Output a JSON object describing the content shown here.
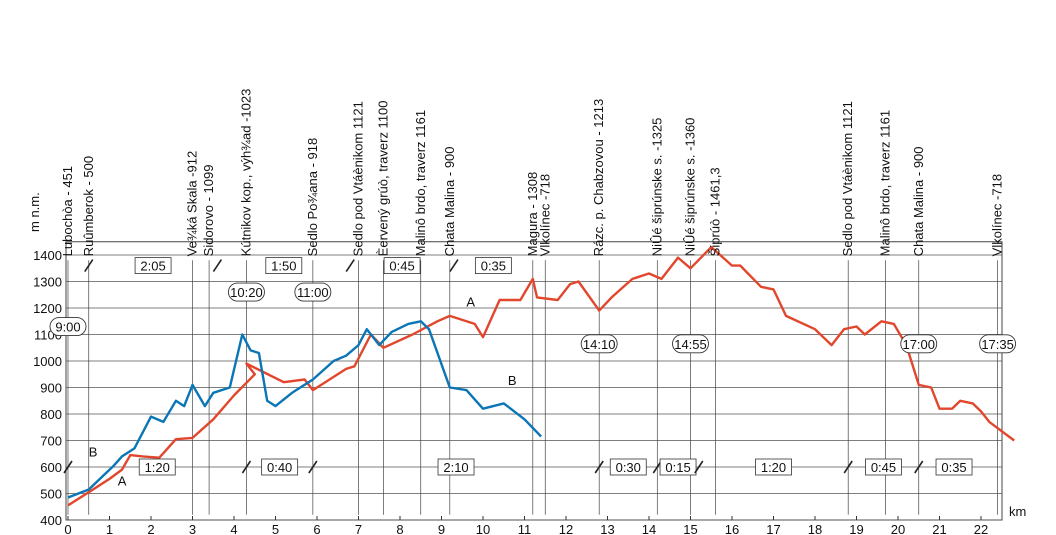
{
  "chart_data": {
    "type": "line",
    "ylabel": "m n.m.",
    "xlabel": "km",
    "xlim": [
      0,
      22.5
    ],
    "ylim": [
      400,
      1450
    ],
    "x_ticks": [
      "0",
      "1",
      "2",
      "3",
      "4",
      "5",
      "6",
      "7",
      "8",
      "9",
      "10",
      "11",
      "12",
      "13",
      "14",
      "15",
      "16",
      "17",
      "18",
      "19",
      "20",
      "21",
      "22"
    ],
    "y_ticks": [
      "400",
      "500",
      "600",
      "700",
      "800",
      "900",
      "1000",
      "1100",
      "1200",
      "1300",
      "1400"
    ],
    "grid": "horizontal",
    "colors": {
      "A": "#e2472e",
      "B": "#0b76b5"
    },
    "series": [
      {
        "name": "A",
        "points": [
          [
            0,
            455
          ],
          [
            0.5,
            505
          ],
          [
            1,
            555
          ],
          [
            1.3,
            590
          ],
          [
            1.5,
            645
          ],
          [
            1.8,
            640
          ],
          [
            2.2,
            635
          ],
          [
            2.6,
            705
          ],
          [
            3,
            710
          ],
          [
            3.5,
            780
          ],
          [
            4,
            870
          ],
          [
            4.5,
            950
          ],
          [
            4.3,
            990
          ],
          [
            5.2,
            920
          ],
          [
            5.7,
            930
          ],
          [
            5.9,
            890
          ],
          [
            6.2,
            920
          ],
          [
            6.7,
            970
          ],
          [
            6.9,
            980
          ],
          [
            7.3,
            1100
          ],
          [
            7.6,
            1050
          ],
          [
            8.3,
            1100
          ],
          [
            8.9,
            1150
          ],
          [
            9.2,
            1170
          ],
          [
            9.8,
            1140
          ],
          [
            10.0,
            1090
          ],
          [
            10.4,
            1230
          ],
          [
            10.9,
            1230
          ],
          [
            11.2,
            1310
          ],
          [
            11.3,
            1240
          ],
          [
            11.8,
            1230
          ],
          [
            12.1,
            1290
          ],
          [
            12.3,
            1300
          ],
          [
            12.8,
            1190
          ],
          [
            13.1,
            1240
          ],
          [
            13.6,
            1310
          ],
          [
            14.0,
            1330
          ],
          [
            14.3,
            1310
          ],
          [
            14.7,
            1390
          ],
          [
            15.0,
            1350
          ],
          [
            15.5,
            1430
          ],
          [
            16.0,
            1360
          ],
          [
            16.2,
            1360
          ],
          [
            16.7,
            1280
          ],
          [
            17.0,
            1270
          ],
          [
            17.3,
            1170
          ],
          [
            18.0,
            1120
          ],
          [
            18.4,
            1060
          ],
          [
            18.7,
            1120
          ],
          [
            19.0,
            1130
          ],
          [
            19.2,
            1100
          ],
          [
            19.6,
            1150
          ],
          [
            19.9,
            1140
          ],
          [
            20.2,
            1060
          ],
          [
            20.5,
            910
          ],
          [
            20.8,
            900
          ],
          [
            21.0,
            820
          ],
          [
            21.3,
            820
          ],
          [
            21.5,
            850
          ],
          [
            21.8,
            840
          ],
          [
            22.0,
            810
          ],
          [
            22.2,
            770
          ],
          [
            22.8,
            700
          ]
        ]
      },
      {
        "name": "B",
        "points": [
          [
            0,
            485
          ],
          [
            0.5,
            515
          ],
          [
            0.8,
            560
          ],
          [
            1.1,
            605
          ],
          [
            1.3,
            640
          ],
          [
            1.6,
            670
          ],
          [
            2.0,
            790
          ],
          [
            2.3,
            770
          ],
          [
            2.6,
            850
          ],
          [
            2.8,
            830
          ],
          [
            3.0,
            910
          ],
          [
            3.3,
            830
          ],
          [
            3.5,
            880
          ],
          [
            3.9,
            900
          ],
          [
            4.2,
            1100
          ],
          [
            4.4,
            1040
          ],
          [
            4.6,
            1030
          ],
          [
            4.8,
            850
          ],
          [
            5.0,
            830
          ],
          [
            5.4,
            880
          ],
          [
            5.9,
            930
          ],
          [
            6.4,
            1000
          ],
          [
            6.7,
            1020
          ],
          [
            7.0,
            1060
          ],
          [
            7.2,
            1120
          ],
          [
            7.5,
            1060
          ],
          [
            7.8,
            1110
          ],
          [
            8.2,
            1140
          ],
          [
            8.5,
            1150
          ],
          [
            8.7,
            1120
          ],
          [
            9.2,
            900
          ],
          [
            9.6,
            890
          ],
          [
            10.0,
            820
          ],
          [
            10.5,
            840
          ],
          [
            11.0,
            780
          ],
          [
            11.4,
            715
          ]
        ]
      }
    ],
    "points_of_interest": [
      {
        "label": "Lubochòa - 451",
        "km": 0
      },
      {
        "label": "Ruûmberok - 500",
        "km": 0.5
      },
      {
        "label": "Ve¾ká Skala -912",
        "km": 3
      },
      {
        "label": "Sidorovo - 1099",
        "km": 3.4
      },
      {
        "label": "Kútnikov kop., výh¾ad -1023",
        "km": 4.3
      },
      {
        "label": "Sedlo Po¾ana - 918",
        "km": 5.9
      },
      {
        "label": "Sedlo pod Vtáènikom 1121",
        "km": 7.0
      },
      {
        "label": "Èervený grúò, traverz 1100",
        "km": 7.6
      },
      {
        "label": "Malinô brdo, traverz 1161",
        "km": 8.5
      },
      {
        "label": "Chata Malina - 900",
        "km": 9.2
      },
      {
        "label": "Magura - 1308",
        "km": 11.2
      },
      {
        "label": "Vlkolínec -718",
        "km": 11.5
      },
      {
        "label": "Rázc. p. Chabzovou - 1213",
        "km": 12.8
      },
      {
        "label": "NiÛé šiprúnske s. -1325",
        "km": 14.2
      },
      {
        "label": "NiÛé šiprúnske s. -1360",
        "km": 15.0
      },
      {
        "label": "Šiprúò - 1461,3",
        "km": 15.6
      },
      {
        "label": "Sedlo pod Vtáènikom 1121",
        "km": 18.8
      },
      {
        "label": "Malinô brdo, traverz 1161",
        "km": 19.7
      },
      {
        "label": "Chata Malina - 900",
        "km": 20.5
      },
      {
        "label": "Vlkolínec -718",
        "km": 22.4
      }
    ],
    "segment_times_upper": [
      {
        "label": "2:05",
        "from": 0.5,
        "to": 3.6
      },
      {
        "label": "1:50",
        "from": 3.6,
        "to": 6.8
      },
      {
        "label": "0:45",
        "from": 6.8,
        "to": 9.3
      },
      {
        "label": "0:35",
        "from": 9.3,
        "to": 11.2
      }
    ],
    "segment_times_lower": [
      {
        "label": "1:20",
        "from": 0,
        "to": 4.3
      },
      {
        "label": "0:40",
        "from": 4.3,
        "to": 5.9
      },
      {
        "label": "2:10",
        "from": 5.9,
        "to": 12.8
      },
      {
        "label": "0:30",
        "from": 12.8,
        "to": 14.2
      },
      {
        "label": "0:15",
        "from": 14.2,
        "to": 15.2
      },
      {
        "label": "1:20",
        "from": 15.2,
        "to": 18.8
      },
      {
        "label": "0:45",
        "from": 18.8,
        "to": 20.5
      },
      {
        "label": "0:35",
        "from": 20.5,
        "to": 22.2
      }
    ],
    "clock_times": [
      {
        "label": "9:00",
        "km": 0.0,
        "y": 1130
      },
      {
        "label": "10:20",
        "km": 4.3,
        "y": 1260
      },
      {
        "label": "11:00",
        "km": 5.9,
        "y": 1260
      },
      {
        "label": "14:10",
        "km": 12.8,
        "y": 1065
      },
      {
        "label": "14:55",
        "km": 15.0,
        "y": 1065
      },
      {
        "label": "17:00",
        "km": 20.5,
        "y": 1065
      },
      {
        "label": "17:35",
        "km": 22.4,
        "y": 1065
      }
    ],
    "route_labels": [
      {
        "label": "A",
        "km": 1.2,
        "y": 530
      },
      {
        "label": "B",
        "km": 0.5,
        "y": 640
      },
      {
        "label": "A",
        "km": 9.6,
        "y": 1205
      },
      {
        "label": "B",
        "km": 10.6,
        "y": 910
      }
    ]
  }
}
